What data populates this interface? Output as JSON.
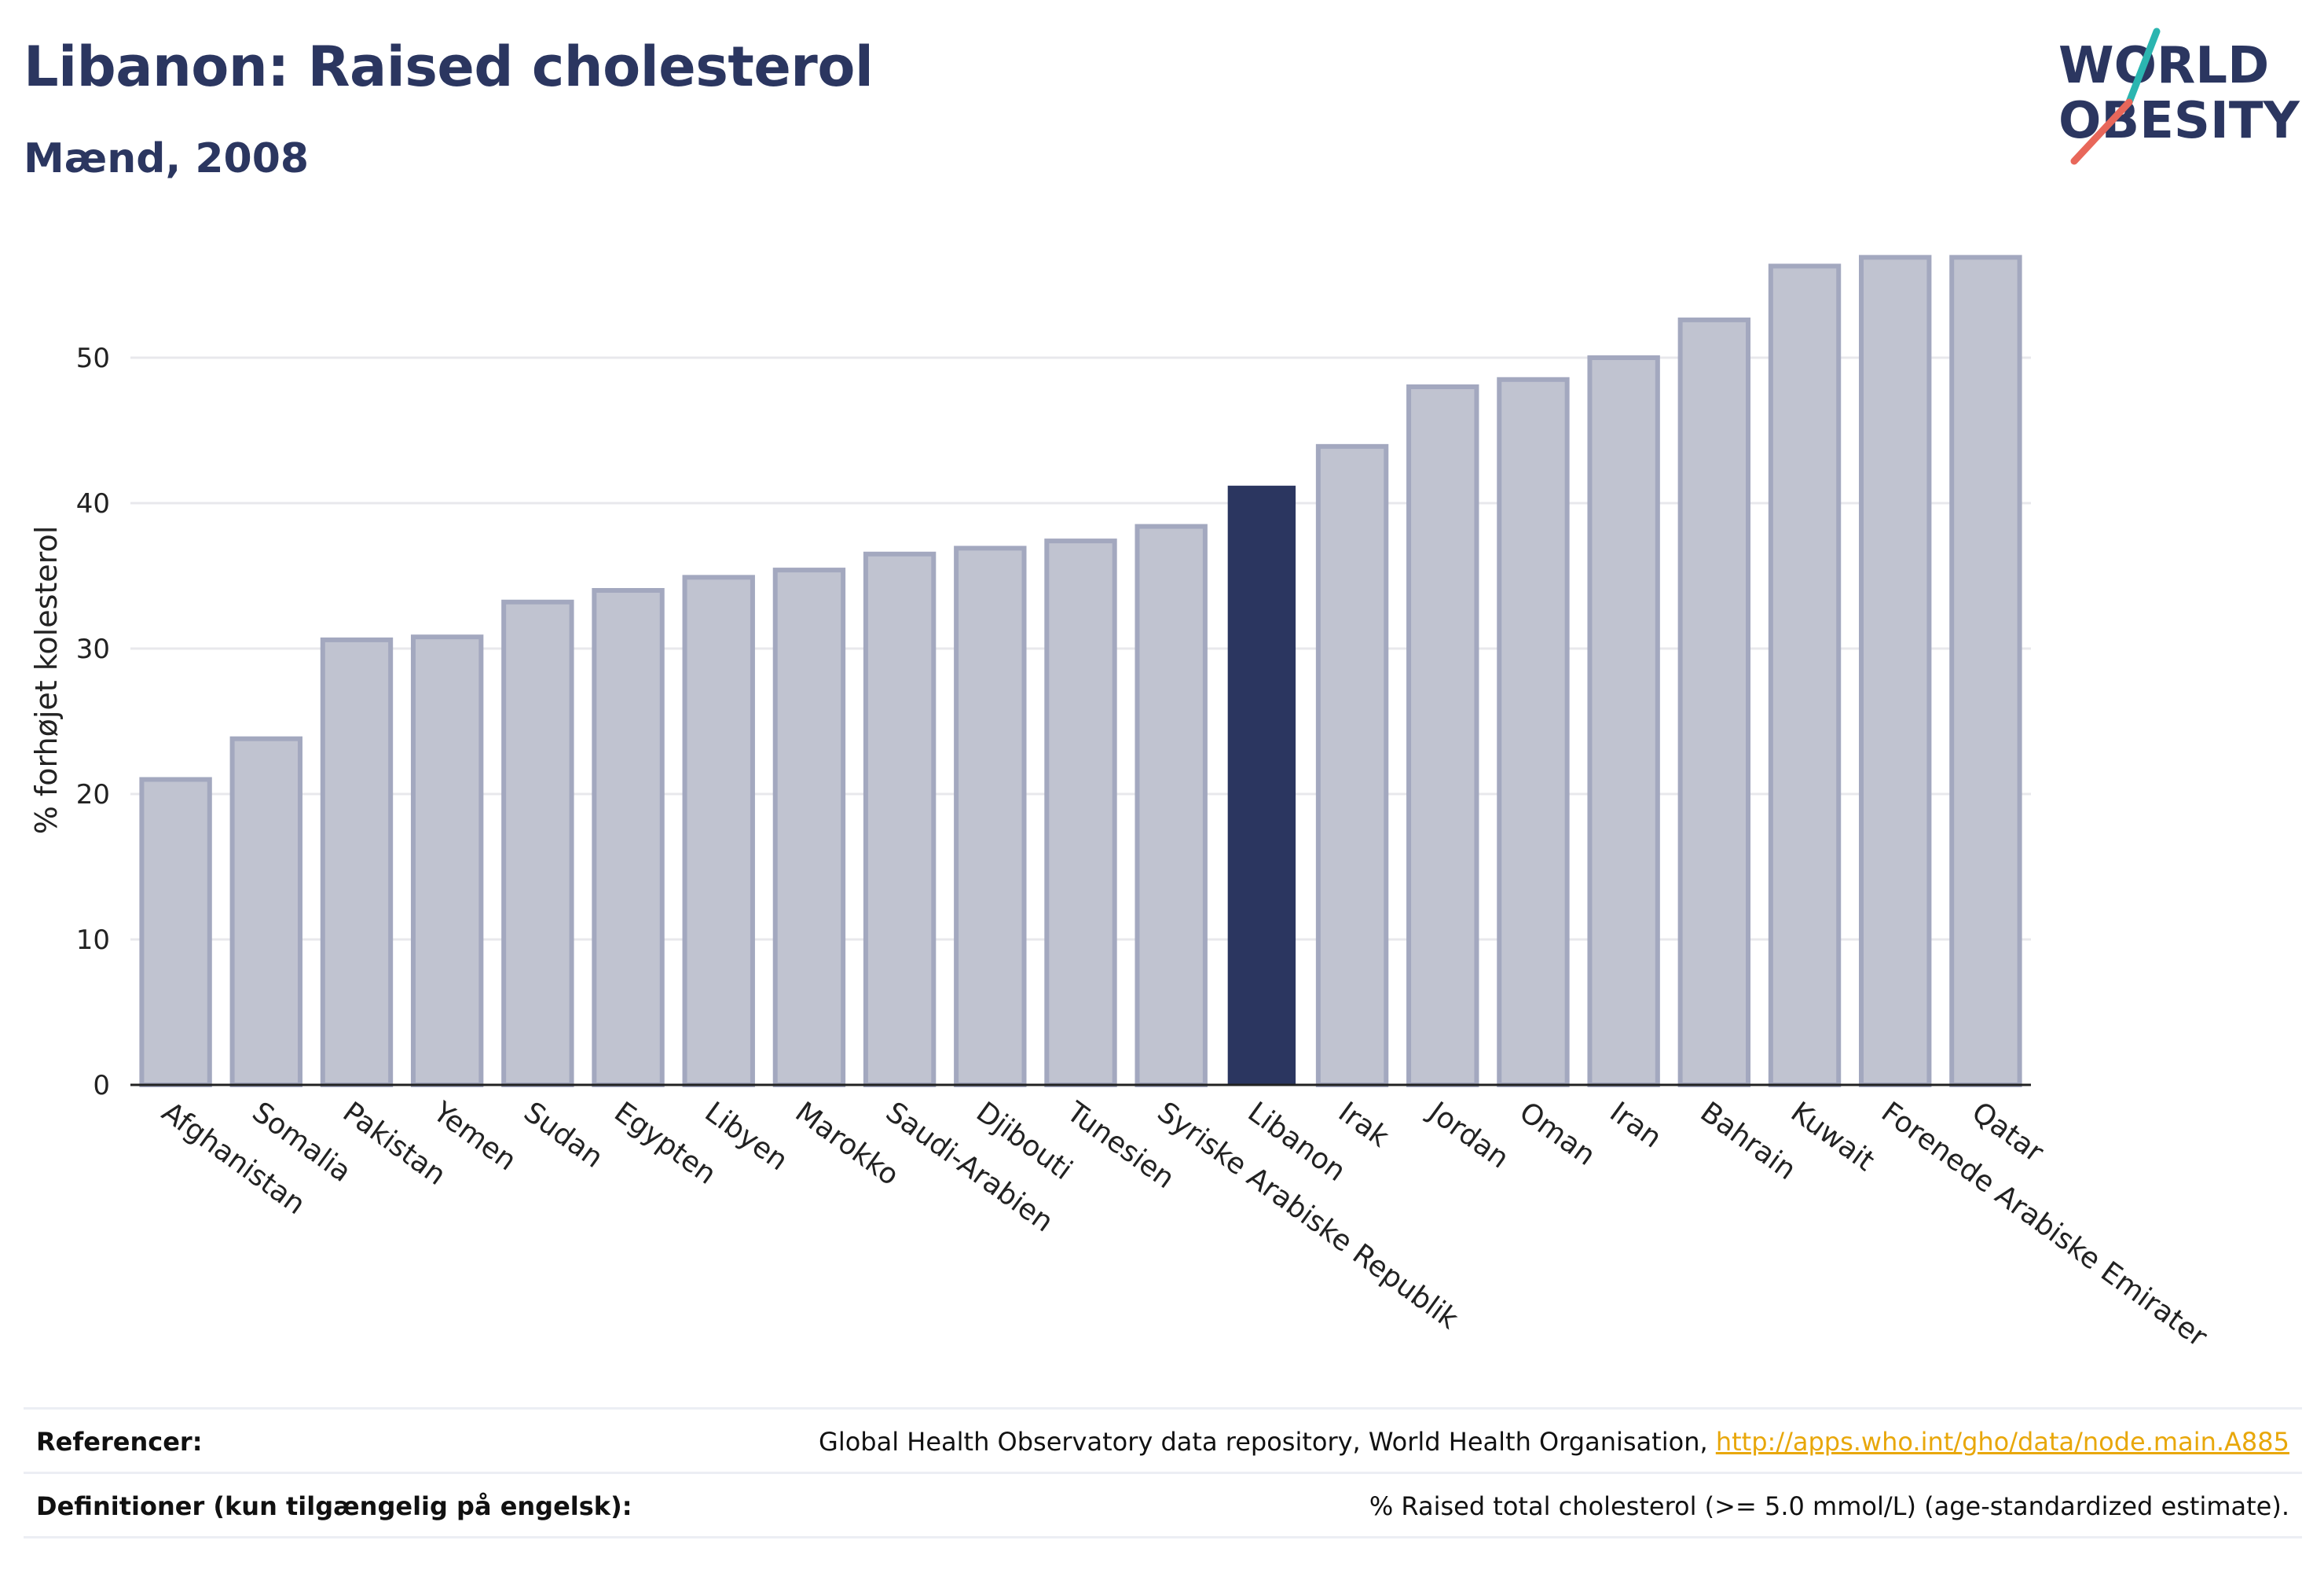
{
  "header": {
    "title": "Libanon: Raised cholesterol",
    "subtitle": "Mænd, 2008"
  },
  "logo": {
    "line1": "WORLD",
    "line2": "OBESITY"
  },
  "chart_data": {
    "type": "bar",
    "categories": [
      "Afghanistan",
      "Somalia",
      "Pakistan",
      "Yemen",
      "Sudan",
      "Egypten",
      "Libyen",
      "Marokko",
      "Saudi-Arabien",
      "Djibouti",
      "Tunesien",
      "Syriske Arabiske Republik",
      "Libanon",
      "Irak",
      "Jordan",
      "Oman",
      "Iran",
      "Bahrain",
      "Kuwait",
      "Forenede Arabiske Emirater",
      "Qatar"
    ],
    "values": [
      21.0,
      23.8,
      30.6,
      30.8,
      33.2,
      34.0,
      34.9,
      35.4,
      36.5,
      36.9,
      37.4,
      38.4,
      41.2,
      43.9,
      48.0,
      48.5,
      50.0,
      52.6,
      56.3,
      56.9,
      56.9
    ],
    "highlight": "Libanon",
    "ylabel": "% forhøjet kolesterol",
    "xlabel": "",
    "ylim": [
      0,
      60
    ],
    "yticks": [
      0,
      10,
      20,
      30,
      40,
      50
    ],
    "grid": true,
    "colors": {
      "bar_fill": "#c0c3d0",
      "bar_stroke": "#a3a8bf",
      "highlight_fill": "#2b3660",
      "grid": "#e8e8ec",
      "axis": "#222222"
    }
  },
  "footer": {
    "references_label": "Referencer:",
    "references_text": "Global Health Observatory data repository, World Health Organisation, ",
    "references_link": "http://apps.who.int/gho/data/node.main.A885",
    "definitions_label": "Definitioner (kun tilgængelig på engelsk):",
    "definitions_text": "% Raised total cholesterol (>= 5.0 mmol/L) (age-standardized estimate)."
  }
}
